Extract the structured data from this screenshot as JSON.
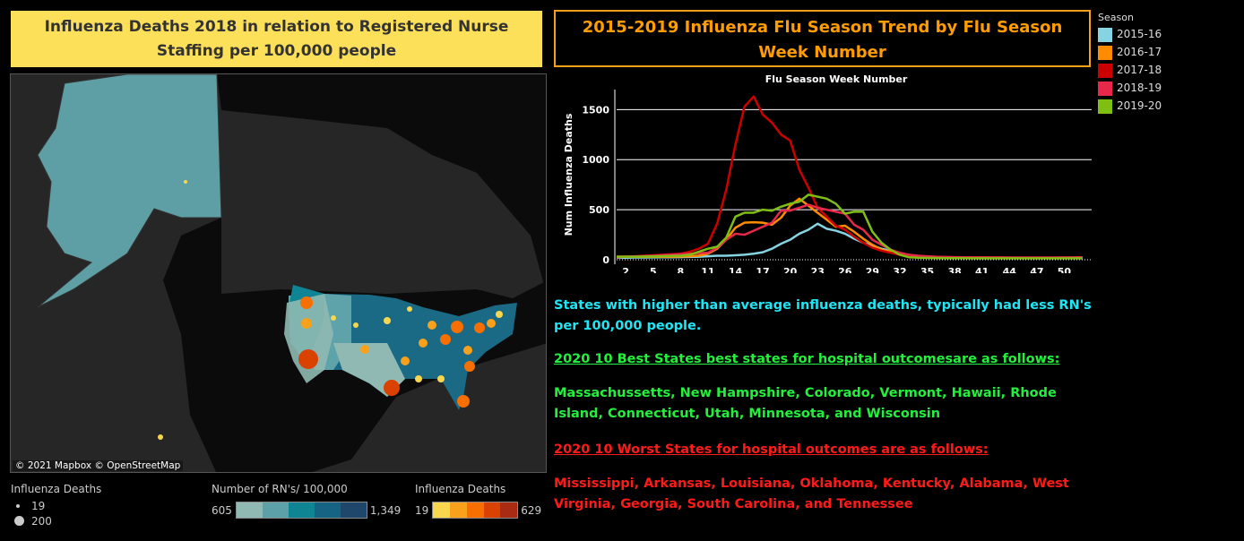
{
  "left_title": "Influenza Deaths 2018 in relation to Registered Nurse Staffing per 100,000 people",
  "map": {
    "attribution": "© 2021 Mapbox  © OpenStreetMap",
    "size_legend": {
      "title": "Influenza Deaths",
      "items": [
        "19",
        "200"
      ]
    },
    "rn_legend": {
      "title": "Number of RN's/ 100,000",
      "min": "605",
      "max": "1,349",
      "colors": [
        "#8fb9b2",
        "#5ca1a7",
        "#0f8594",
        "#176384",
        "#1f466b"
      ]
    },
    "deaths_legend": {
      "title": "Influenza Deaths",
      "min": "19",
      "max": "629",
      "colors": [
        "#f8d64e",
        "#f9a11b",
        "#f76f00",
        "#d94200",
        "#a92b13"
      ]
    }
  },
  "right_title": "2015-2019 Influenza Flu Season Trend by Flu Season Week Number",
  "chart_data": {
    "type": "line",
    "title": "Flu Season Week Number",
    "xlabel": "Flu Season Week Number",
    "ylabel": "Num Influenza Deaths",
    "xlim": [
      1,
      53
    ],
    "ylim": [
      0,
      1700
    ],
    "xticks": [
      2,
      5,
      8,
      11,
      14,
      17,
      20,
      23,
      26,
      29,
      32,
      35,
      38,
      41,
      44,
      47,
      50
    ],
    "yticks": [
      0,
      500,
      1000,
      1500
    ],
    "legend_title": "Season",
    "legend_position": "right",
    "series": [
      {
        "name": "2015-16",
        "color": "#86d4e2",
        "values": [
          20,
          20,
          22,
          22,
          24,
          25,
          25,
          26,
          28,
          30,
          35,
          40,
          40,
          45,
          50,
          60,
          75,
          110,
          160,
          200,
          260,
          300,
          360,
          310,
          290,
          260,
          210,
          170,
          140,
          110,
          90,
          65,
          45,
          35,
          28,
          24,
          22,
          20,
          20,
          18,
          18,
          17,
          17,
          16,
          16,
          16,
          16,
          16,
          16,
          16,
          17,
          17
        ]
      },
      {
        "name": "2016-17",
        "color": "#ff8c00",
        "values": [
          30,
          30,
          30,
          30,
          30,
          30,
          30,
          32,
          35,
          40,
          60,
          110,
          200,
          320,
          370,
          375,
          370,
          350,
          420,
          540,
          610,
          540,
          470,
          400,
          330,
          340,
          280,
          210,
          150,
          100,
          80,
          55,
          40,
          32,
          28,
          26,
          25,
          24,
          23,
          22,
          22,
          21,
          21,
          20,
          20,
          20,
          20,
          20,
          20,
          21,
          22,
          23
        ]
      },
      {
        "name": "2017-18",
        "color": "#cc0000",
        "values": [
          25,
          30,
          35,
          40,
          45,
          50,
          55,
          60,
          80,
          110,
          160,
          360,
          700,
          1150,
          1530,
          1630,
          1450,
          1370,
          1250,
          1190,
          900,
          720,
          520,
          430,
          340,
          300,
          230,
          170,
          120,
          90,
          70,
          50,
          40,
          35,
          30,
          28,
          26,
          25,
          24,
          23,
          22,
          22,
          21,
          21,
          20,
          20,
          20,
          20,
          20,
          20,
          20,
          20
        ]
      },
      {
        "name": "2018-19",
        "color": "#e8284a",
        "values": [
          30,
          32,
          34,
          36,
          40,
          45,
          50,
          55,
          60,
          65,
          70,
          120,
          200,
          260,
          250,
          290,
          330,
          370,
          490,
          490,
          520,
          550,
          520,
          500,
          480,
          460,
          350,
          300,
          200,
          150,
          100,
          70,
          50,
          40,
          35,
          30,
          28,
          26,
          25,
          24,
          24,
          23,
          23,
          22,
          22,
          22,
          22,
          22,
          22,
          23,
          24,
          25
        ]
      },
      {
        "name": "2019-20",
        "color": "#7fbf14",
        "values": [
          30,
          30,
          30,
          32,
          34,
          36,
          38,
          40,
          50,
          80,
          110,
          130,
          220,
          430,
          470,
          470,
          500,
          490,
          530,
          560,
          580,
          650,
          630,
          610,
          560,
          460,
          480,
          480,
          280,
          170,
          100,
          50,
          25,
          20,
          18,
          17,
          16,
          16,
          16,
          15,
          15,
          15,
          15,
          15,
          15,
          15,
          15,
          15,
          15,
          15,
          15,
          15
        ]
      }
    ]
  },
  "notes": {
    "summary": "States with higher than average influenza deaths, typically had less RN's per 100,000 people.",
    "best_heading": "2020 10 Best States  best states for hospital outcomesare as follows:",
    "best_list": "Massachussetts, New Hampshire, Colorado, Vermont, Hawaii, Rhode Island, Connecticut, Utah, Minnesota, and Wisconsin",
    "worst_heading": "2020 10 Worst States for hospital outcomes are as follows: ",
    "worst_list": "Mississippi, Arkansas, Louisiana, Oklahoma, Kentucky, Alabama, West Virginia, Georgia, South Carolina, and Tennessee"
  },
  "colors": {
    "summary": "#1ee6f5",
    "best": "#22f03c",
    "worst": "#ff1a1a"
  }
}
